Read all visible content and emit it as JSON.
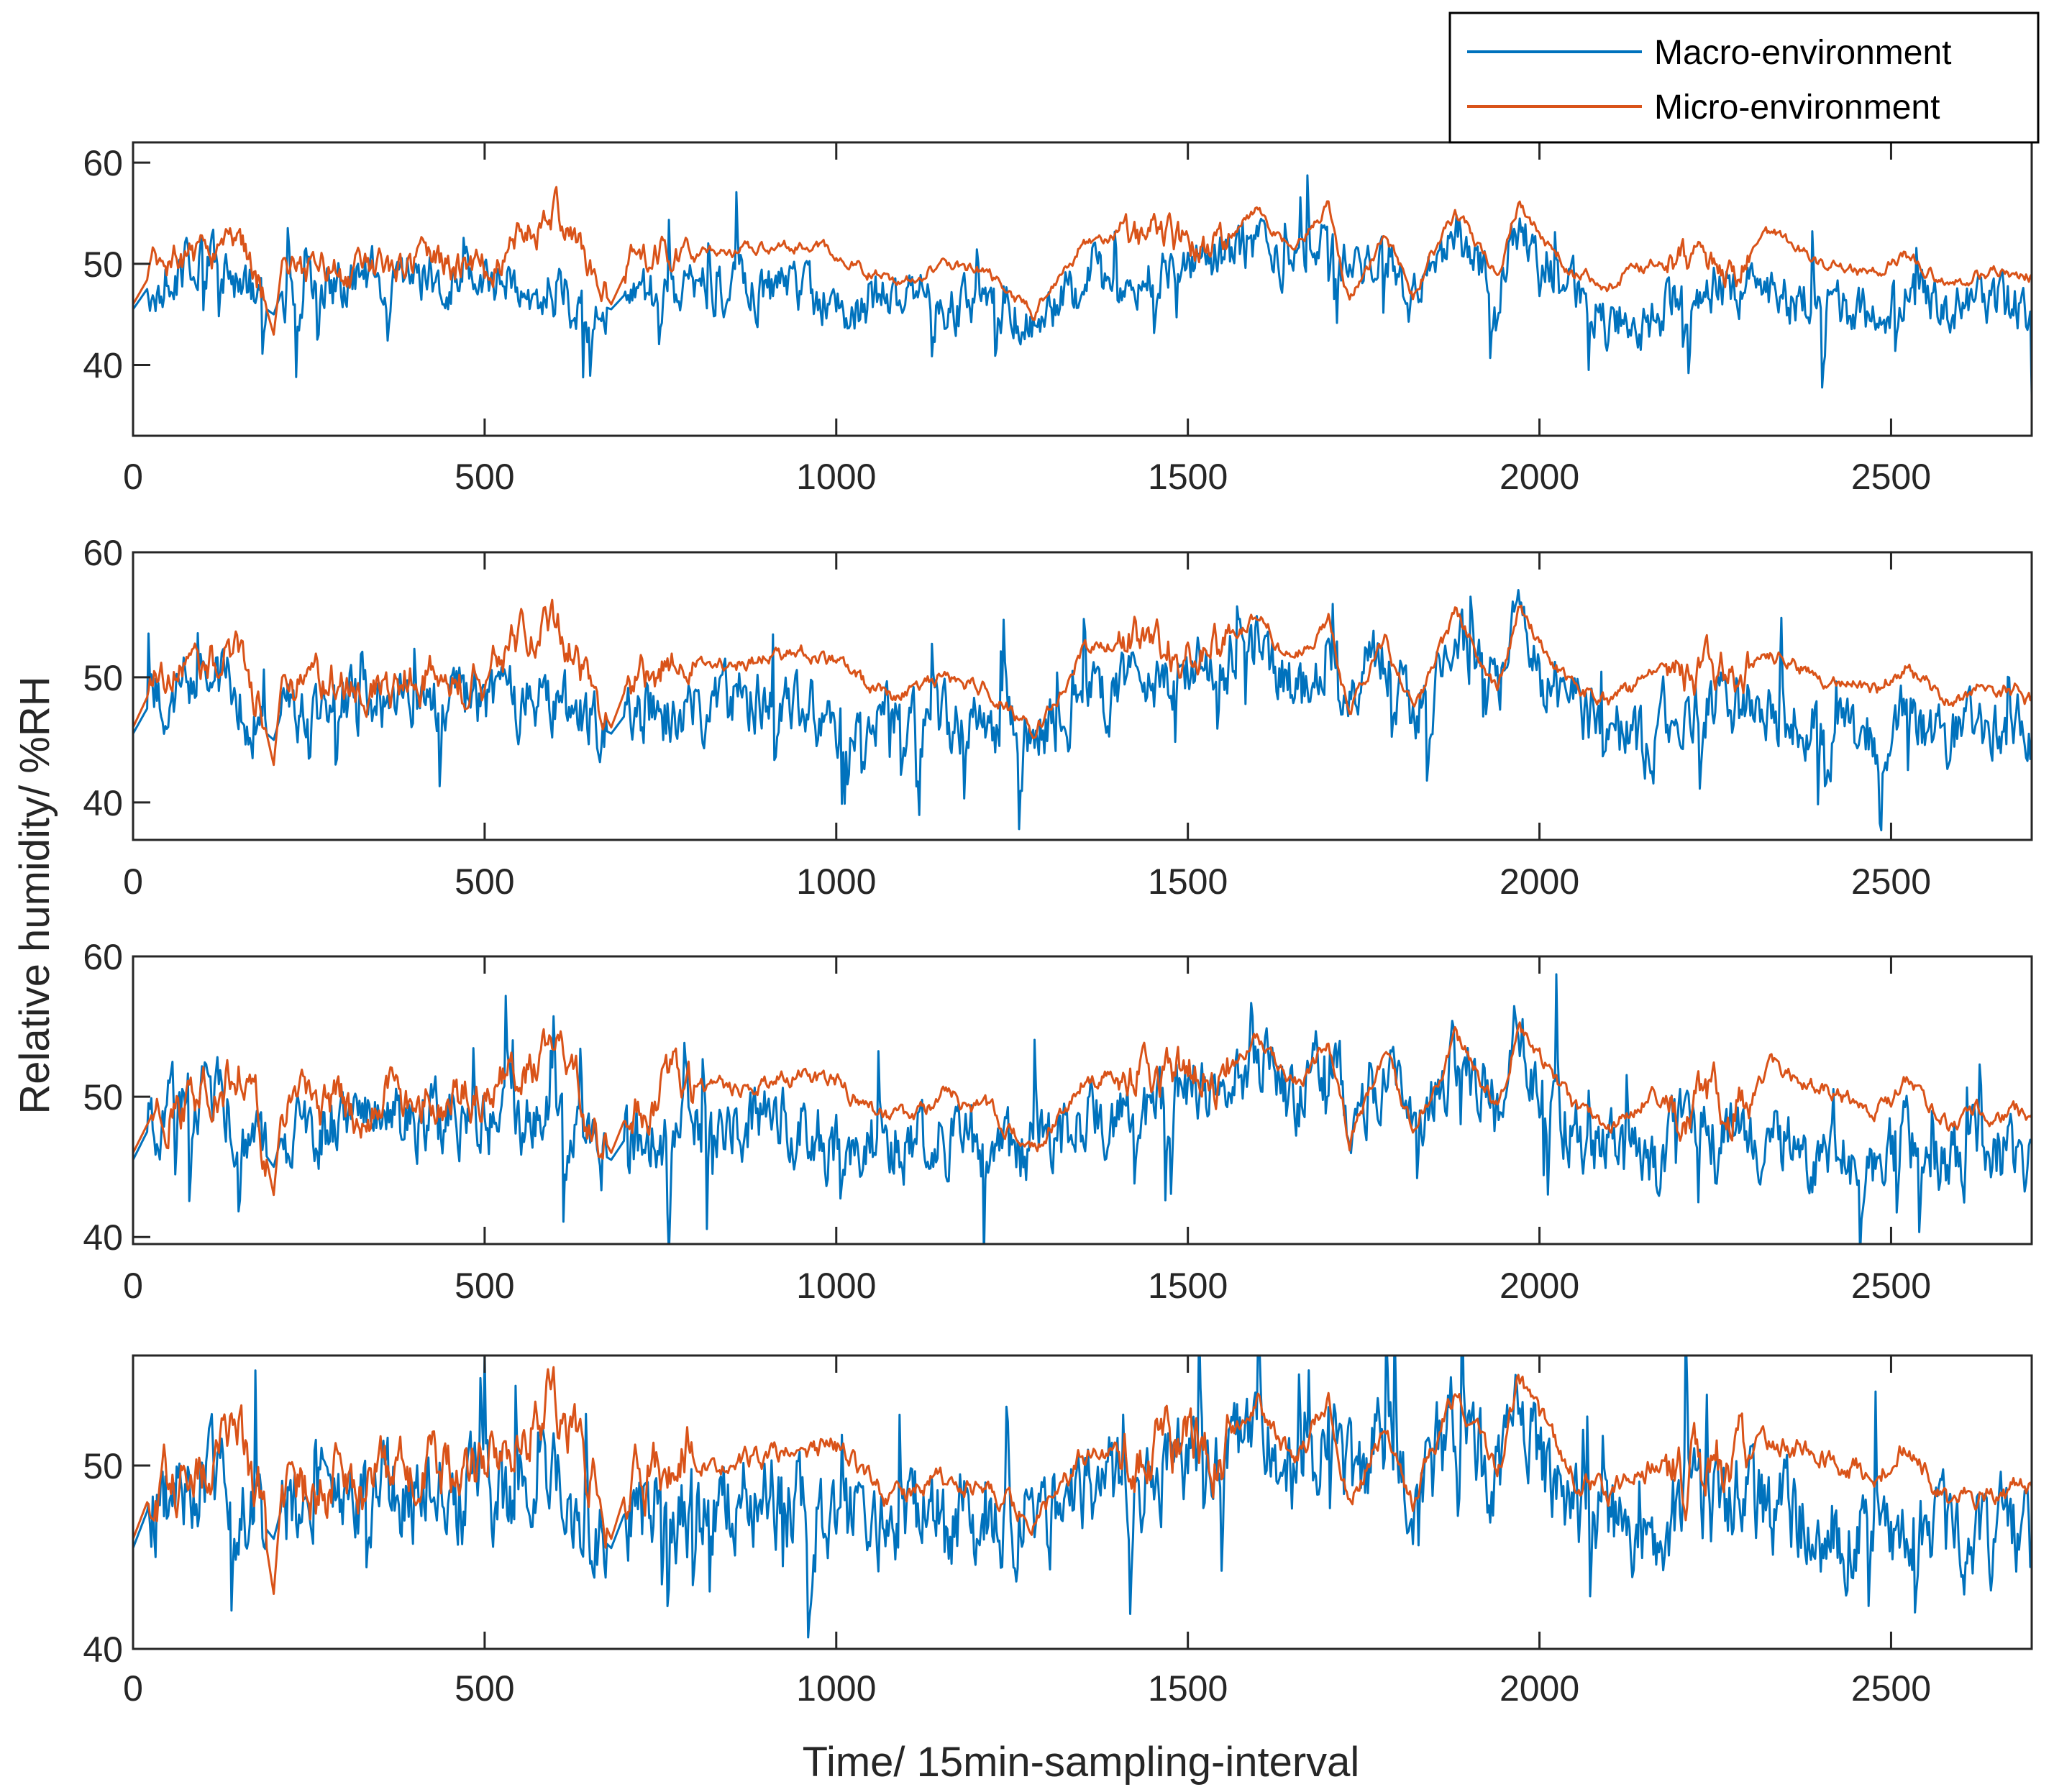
{
  "chart_data": {
    "type": "line",
    "xlabel": "Time/ 15min-sampling-interval",
    "ylabel": "Relative humidity/ %RH",
    "xlim": [
      0,
      2700
    ],
    "xticks": [
      "0",
      "500",
      "1000",
      "1500",
      "2000",
      "2500"
    ],
    "legend": {
      "placement": "top-right, outside plots",
      "entries": [
        "Macro-environment",
        "Micro-environment"
      ]
    },
    "colors": {
      "macro": "#0072BD",
      "micro": "#D95319"
    },
    "grid": false,
    "series_style": "noisy time series; values below are anchor levels read from the plot (regional means), fine-scale fluctuations are approximate",
    "subplots": [
      {
        "ylim": [
          33,
          62
        ],
        "yticks": [
          "40",
          "50",
          "60"
        ],
        "series": [
          {
            "name": "Macro-environment",
            "x": [
              0,
              25,
              60,
              110,
              150,
              180,
              200,
              210,
              300,
              400,
              500,
              600,
              680,
              700,
              780,
              850,
              950,
              1000,
              1080,
              1150,
              1220,
              1280,
              1350,
              1420,
              1500,
              1550,
              1600,
              1650,
              1700,
              1730,
              1780,
              1820,
              1880,
              1940,
              1970,
              2000,
              2050,
              2100,
              2160,
              2200,
              2280,
              2330,
              2400,
              2480,
              2520,
              2580,
              2620,
              2680,
              2700
            ],
            "y": [
              45.5,
              48,
              49,
              51,
              48,
              46,
              45,
              47,
              48.5,
              48.5,
              48,
              47.5,
              45.5,
              47,
              47,
              48,
              47,
              46,
              47,
              46,
              46,
              44,
              48,
              49,
              51,
              50,
              53,
              49,
              53,
              49,
              52,
              46,
              53,
              48,
              55,
              49,
              47,
              45,
              44,
              48,
              48,
              47,
              46,
              45,
              47,
              45,
              46,
              46,
              44
            ]
          },
          {
            "name": "Micro-environment",
            "x": [
              0,
              25,
              60,
              110,
              150,
              180,
              200,
              210,
              300,
              400,
              500,
              600,
              680,
              700,
              780,
              850,
              950,
              1000,
              1080,
              1150,
              1220,
              1280,
              1350,
              1420,
              1500,
              1550,
              1600,
              1650,
              1700,
              1730,
              1780,
              1820,
              1880,
              1940,
              1970,
              2000,
              2050,
              2100,
              2160,
              2200,
              2280,
              2330,
              2400,
              2480,
              2520,
              2580,
              2620,
              2680,
              2700
            ],
            "y": [
              46,
              49,
              50,
              51,
              53,
              48,
              43,
              49,
              49.5,
              50,
              50,
              55,
              46,
              49,
              52,
              51,
              52,
              51,
              48,
              50,
              49,
              45,
              52,
              53,
              52,
              52,
              55,
              51,
              56,
              46,
              53,
              47,
              55,
              49,
              56,
              53,
              49,
              48,
              50,
              50,
              50,
              53,
              50,
              49,
              51,
              48,
              49,
              49,
              49
            ]
          }
        ]
      },
      {
        "ylim": [
          37,
          60
        ],
        "yticks": [
          "40",
          "50",
          "60"
        ],
        "series": [
          {
            "name": "Macro-environment",
            "x": [
              0,
              25,
              60,
              110,
              150,
              180,
              200,
              210,
              300,
              400,
              500,
              600,
              680,
              700,
              780,
              850,
              950,
              1000,
              1080,
              1150,
              1220,
              1280,
              1350,
              1420,
              1500,
              1550,
              1600,
              1650,
              1700,
              1730,
              1780,
              1820,
              1880,
              1940,
              1970,
              2000,
              2050,
              2100,
              2160,
              2200,
              2280,
              2330,
              2400,
              2480,
              2520,
              2580,
              2620,
              2680,
              2700
            ],
            "y": [
              45.5,
              48,
              49,
              51,
              48,
              46,
              45,
              47,
              48.5,
              48.5,
              48,
              48,
              45.5,
              47,
              47,
              48,
              48,
              46,
              47,
              46.5,
              46,
              45,
              48,
              49,
              51,
              51,
              53,
              49,
              53,
              49,
              52,
              47,
              53,
              49,
              56,
              50,
              48,
              46,
              44,
              48,
              48,
              47,
              46,
              45,
              47,
              45,
              46,
              46,
              44
            ]
          },
          {
            "name": "Micro-environment",
            "x": [
              0,
              25,
              60,
              110,
              150,
              180,
              200,
              210,
              300,
              400,
              500,
              600,
              680,
              700,
              780,
              850,
              950,
              1000,
              1080,
              1150,
              1220,
              1280,
              1350,
              1420,
              1500,
              1550,
              1600,
              1650,
              1700,
              1730,
              1780,
              1820,
              1880,
              1940,
              1970,
              2000,
              2050,
              2100,
              2160,
              2200,
              2280,
              2330,
              2400,
              2480,
              2520,
              2580,
              2620,
              2680,
              2700
            ],
            "y": [
              46,
              49,
              50,
              51,
              52.5,
              48,
              43,
              49,
              49.5,
              50,
              50,
              55,
              46,
              49,
              52,
              51,
              52,
              51,
              48,
              50,
              49,
              45.5,
              52,
              53,
              52,
              52,
              55,
              51,
              55,
              47,
              53,
              47,
              55,
              49,
              55,
              53,
              49,
              48,
              50,
              50,
              50,
              52,
              50,
              49,
              51,
              48,
              49,
              49,
              48
            ]
          }
        ]
      },
      {
        "ylim": [
          39.5,
          60
        ],
        "yticks": [
          "40",
          "50",
          "60"
        ],
        "series": [
          {
            "name": "Macro-environment",
            "x": [
              0,
              25,
              60,
              110,
              150,
              180,
              200,
              210,
              300,
              400,
              500,
              600,
              680,
              700,
              780,
              850,
              950,
              1000,
              1080,
              1150,
              1220,
              1280,
              1350,
              1420,
              1500,
              1550,
              1600,
              1650,
              1700,
              1730,
              1780,
              1820,
              1880,
              1940,
              1970,
              2000,
              2050,
              2100,
              2160,
              2200,
              2280,
              2330,
              2400,
              2480,
              2520,
              2580,
              2620,
              2680,
              2700
            ],
            "y": [
              45.5,
              48,
              49,
              50.5,
              48,
              46.5,
              45,
              47,
              48.5,
              48.5,
              48,
              48,
              45.5,
              47,
              47,
              48,
              48,
              46.5,
              47,
              47,
              46.5,
              46,
              48,
              49,
              51,
              50,
              53,
              49,
              53,
              49,
              52,
              47,
              53,
              49,
              55,
              50,
              48,
              46,
              44,
              48,
              48,
              47,
              46,
              45,
              47,
              45,
              46,
              46,
              45
            ]
          },
          {
            "name": "Micro-environment",
            "x": [
              0,
              25,
              60,
              110,
              150,
              180,
              200,
              210,
              300,
              400,
              500,
              600,
              680,
              700,
              780,
              850,
              950,
              1000,
              1080,
              1150,
              1220,
              1280,
              1350,
              1420,
              1500,
              1550,
              1600,
              1650,
              1700,
              1730,
              1780,
              1820,
              1880,
              1940,
              1970,
              2000,
              2050,
              2100,
              2160,
              2200,
              2280,
              2330,
              2400,
              2480,
              2520,
              2580,
              2620,
              2680,
              2700
            ],
            "y": [
              46,
              48.5,
              49.5,
              50.5,
              52,
              48,
              43,
              48.5,
              49,
              49.5,
              50,
              54,
              46,
              48.5,
              51.5,
              50.5,
              51.5,
              51,
              48,
              50,
              49,
              46,
              51,
              52,
              52,
              51.5,
              54,
              50.5,
              54,
              47,
              53,
              47.5,
              54.5,
              49,
              55,
              53,
              49,
              48,
              50,
              50,
              50,
              52,
              50.5,
              49,
              51,
              48,
              49,
              49,
              48
            ]
          }
        ]
      },
      {
        "ylim": [
          40,
          56
        ],
        "yticks": [
          "40",
          "50"
        ],
        "series": [
          {
            "name": "Macro-environment",
            "x": [
              0,
              25,
              60,
              110,
              150,
              180,
              200,
              210,
              300,
              400,
              500,
              600,
              680,
              700,
              780,
              850,
              950,
              1000,
              1080,
              1150,
              1220,
              1280,
              1350,
              1420,
              1500,
              1550,
              1600,
              1650,
              1700,
              1730,
              1780,
              1820,
              1880,
              1940,
              1970,
              2000,
              2050,
              2100,
              2160,
              2200,
              2280,
              2330,
              2400,
              2480,
              2520,
              2580,
              2620,
              2680,
              2700
            ],
            "y": [
              45.5,
              48,
              48.5,
              50,
              48,
              47,
              46,
              47.5,
              48.5,
              48.5,
              48.5,
              48.5,
              45.5,
              47.5,
              47.5,
              48,
              48,
              47,
              47.5,
              47.5,
              47,
              47,
              48.5,
              49,
              51,
              50,
              52,
              49,
              52,
              49,
              51.5,
              47.5,
              52.5,
              49,
              54,
              50,
              48,
              46.5,
              45,
              48,
              48,
              47.5,
              46.5,
              46,
              47.5,
              46,
              46.5,
              46.5,
              45.5
            ]
          },
          {
            "name": "Micro-environment",
            "x": [
              0,
              25,
              60,
              110,
              150,
              180,
              200,
              210,
              300,
              400,
              500,
              600,
              680,
              700,
              780,
              850,
              950,
              1000,
              1080,
              1150,
              1220,
              1280,
              1350,
              1420,
              1500,
              1550,
              1600,
              1650,
              1700,
              1730,
              1780,
              1820,
              1880,
              1940,
              1970,
              2000,
              2050,
              2100,
              2160,
              2200,
              2280,
              2330,
              2400,
              2480,
              2520,
              2580,
              2620,
              2680,
              2700
            ],
            "y": [
              46,
              48.5,
              49,
              50,
              51.5,
              48,
              43,
              48,
              49,
              49.5,
              49.5,
              53.5,
              46,
              48.5,
              51,
              50,
              51,
              51,
              48,
              49.5,
              49,
              47,
              50.5,
              51,
              51.5,
              51,
              53.5,
              50,
              53.5,
              48,
              52.5,
              48,
              54,
              49.5,
              54.5,
              52.5,
              49.5,
              48.5,
              50,
              50,
              50,
              51.5,
              50.5,
              49.5,
              51,
              48,
              48.5,
              48.5,
              48.5
            ]
          }
        ]
      }
    ]
  }
}
